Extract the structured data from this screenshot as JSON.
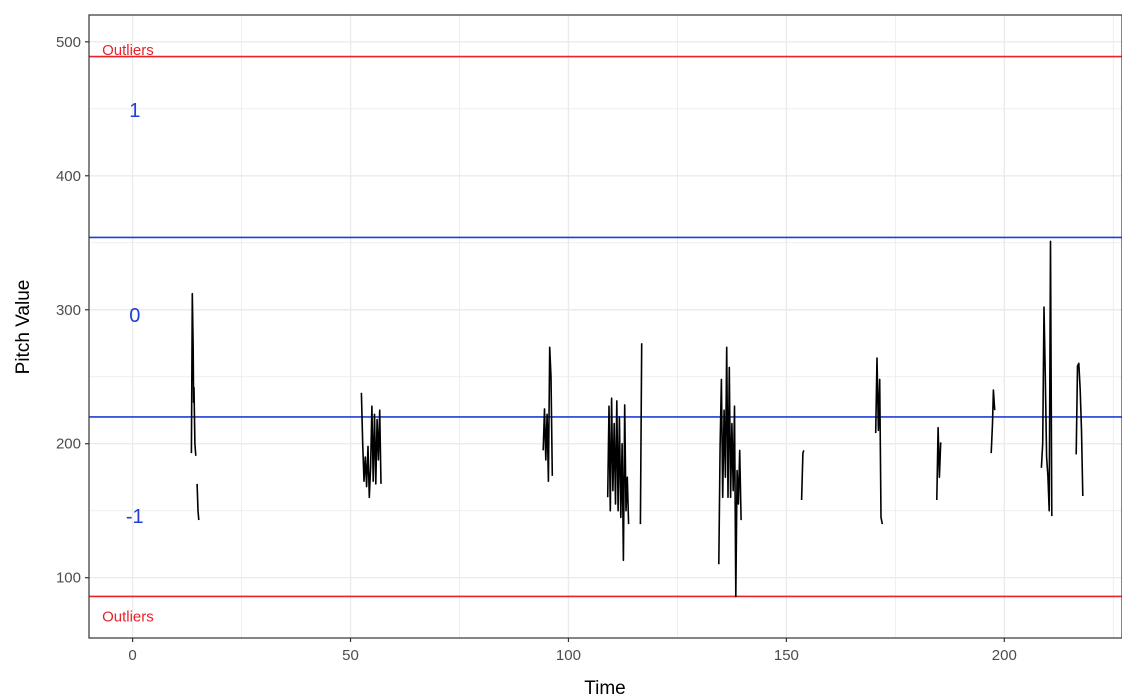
{
  "chart_data": {
    "type": "line",
    "title": "",
    "xlabel": "Time",
    "ylabel": "Pitch Value",
    "xlim": [
      -10,
      227
    ],
    "ylim": [
      55,
      520
    ],
    "xticks": [
      0,
      50,
      100,
      150,
      200
    ],
    "yticks": [
      100,
      200,
      300,
      400,
      500
    ],
    "x_tick_labels": [
      "0",
      "50",
      "100",
      "150",
      "200"
    ],
    "y_tick_labels": [
      "100",
      "200",
      "300",
      "400",
      "500"
    ],
    "grid": true,
    "legend": "none",
    "colors": {
      "series": "#000000",
      "boundary": "#1f3fd6",
      "outlier": "#e8232a",
      "grid": "#ebebeb",
      "panel_border": "#333333"
    },
    "reference_lines": [
      {
        "y": 489,
        "color": "#e8232a",
        "kind": "outlier"
      },
      {
        "y": 354,
        "color": "#1f3fd6",
        "kind": "boundary"
      },
      {
        "y": 220,
        "color": "#1f3fd6",
        "kind": "boundary"
      },
      {
        "y": 86,
        "color": "#e8232a",
        "kind": "outlier"
      }
    ],
    "annotations": [
      {
        "text": "Outliers",
        "x": -7,
        "y": 494,
        "color": "#e8232a",
        "kind": "red"
      },
      {
        "text": "1",
        "x": 0.5,
        "y": 449,
        "color": "#1f3fd6",
        "kind": "blue"
      },
      {
        "text": "0",
        "x": 0.5,
        "y": 296,
        "color": "#1f3fd6",
        "kind": "blue"
      },
      {
        "text": "-1",
        "x": 0.5,
        "y": 146,
        "color": "#1f3fd6",
        "kind": "blue"
      },
      {
        "text": "Outliers",
        "x": -7,
        "y": 71,
        "color": "#e8232a",
        "kind": "red"
      }
    ],
    "segments": [
      [
        [
          13.5,
          193
        ],
        [
          13.7,
          312
        ],
        [
          13.9,
          270
        ],
        [
          14.0,
          231
        ],
        [
          14.1,
          242
        ],
        [
          14.3,
          200
        ],
        [
          14.5,
          191
        ]
      ],
      [
        [
          14.8,
          170
        ],
        [
          15.0,
          150
        ],
        [
          15.2,
          143
        ]
      ],
      [
        [
          52.5,
          238
        ],
        [
          52.8,
          200
        ],
        [
          53.1,
          172
        ],
        [
          53.4,
          190
        ],
        [
          53.7,
          168
        ],
        [
          54.0,
          198
        ],
        [
          54.3,
          160
        ],
        [
          54.6,
          182
        ],
        [
          54.9,
          228
        ],
        [
          55.2,
          172
        ],
        [
          55.5,
          222
        ],
        [
          55.8,
          170
        ],
        [
          56.1,
          218
        ],
        [
          56.4,
          188
        ],
        [
          56.7,
          225
        ],
        [
          57.0,
          170
        ]
      ],
      [
        [
          94.2,
          195
        ],
        [
          94.5,
          226
        ],
        [
          94.8,
          188
        ],
        [
          95.1,
          222
        ],
        [
          95.4,
          172
        ],
        [
          95.7,
          272
        ],
        [
          96.0,
          250
        ],
        [
          96.3,
          176
        ]
      ],
      [
        [
          109.0,
          160
        ],
        [
          109.3,
          228
        ],
        [
          109.6,
          150
        ],
        [
          109.9,
          234
        ],
        [
          110.2,
          165
        ],
        [
          110.5,
          215
        ],
        [
          110.8,
          155
        ],
        [
          111.1,
          232
        ],
        [
          111.4,
          150
        ],
        [
          111.7,
          220
        ],
        [
          112.0,
          145
        ],
        [
          112.3,
          200
        ],
        [
          112.6,
          113
        ],
        [
          112.9,
          229
        ],
        [
          113.2,
          150
        ],
        [
          113.5,
          175
        ],
        [
          113.8,
          140
        ]
      ],
      [
        [
          116.5,
          140
        ],
        [
          116.8,
          275
        ]
      ],
      [
        [
          134.5,
          110
        ],
        [
          134.8,
          198
        ],
        [
          135.1,
          248
        ],
        [
          135.4,
          160
        ],
        [
          135.7,
          225
        ],
        [
          136.0,
          175
        ],
        [
          136.3,
          272
        ],
        [
          136.6,
          160
        ],
        [
          136.9,
          257
        ],
        [
          137.2,
          160
        ],
        [
          137.5,
          215
        ],
        [
          137.8,
          165
        ],
        [
          138.1,
          228
        ],
        [
          138.4,
          86
        ],
        [
          138.7,
          180
        ],
        [
          139.0,
          155
        ],
        [
          139.3,
          195
        ],
        [
          139.6,
          143
        ]
      ],
      [
        [
          153.5,
          158
        ],
        [
          153.8,
          193
        ],
        [
          154.0,
          195
        ]
      ],
      [
        [
          170.5,
          208
        ],
        [
          170.8,
          264
        ],
        [
          171.1,
          210
        ],
        [
          171.4,
          248
        ],
        [
          171.7,
          145
        ],
        [
          172.0,
          140
        ]
      ],
      [
        [
          184.5,
          158
        ],
        [
          184.8,
          212
        ],
        [
          185.1,
          175
        ],
        [
          185.4,
          201
        ]
      ],
      [
        [
          197.0,
          193
        ],
        [
          197.3,
          215
        ],
        [
          197.5,
          240
        ],
        [
          197.8,
          225
        ]
      ],
      [
        [
          208.5,
          182
        ],
        [
          208.8,
          200
        ],
        [
          209.1,
          302
        ],
        [
          209.4,
          250
        ],
        [
          209.7,
          190
        ],
        [
          210.0,
          176
        ],
        [
          210.3,
          150
        ],
        [
          210.6,
          351
        ],
        [
          210.9,
          146
        ]
      ],
      [
        [
          216.5,
          192
        ],
        [
          216.8,
          258
        ],
        [
          217.1,
          260
        ],
        [
          217.4,
          240
        ],
        [
          217.7,
          210
        ],
        [
          218.0,
          161
        ]
      ]
    ]
  }
}
